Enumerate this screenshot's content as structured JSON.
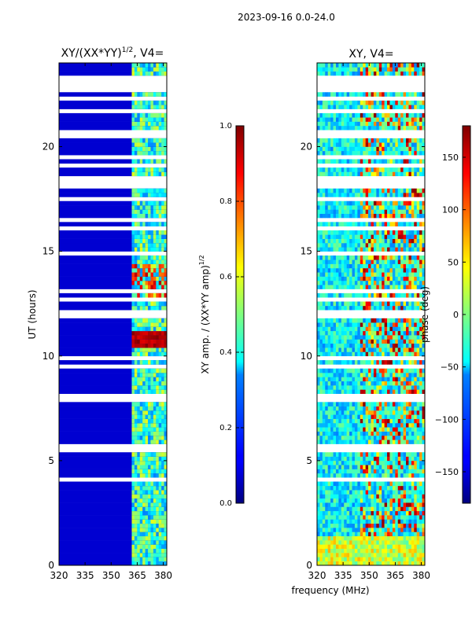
{
  "figure_title": "2023-09-16 0.0-24.0",
  "chart_data": [
    {
      "type": "heatmap",
      "title": "XY/(XX*YY)",
      "title_exponent": "1/2",
      "title_suffix": ", V4=",
      "xlabel": "",
      "ylabel": "UT (hours)",
      "xlim": [
        320,
        382
      ],
      "ylim": [
        0,
        24
      ],
      "xticks": [
        320,
        335,
        350,
        365,
        380
      ],
      "yticks": [
        0,
        5,
        10,
        15,
        20
      ],
      "colorbar": {
        "label_main": "XY amp. / (XX*YY amp)",
        "label_exponent": "1/2",
        "range": [
          0.0,
          1.0
        ],
        "ticks": [
          "0.0",
          "0.2",
          "0.4",
          "0.6",
          "0.8",
          "1.0"
        ],
        "colormap": "jet"
      }
    },
    {
      "type": "heatmap",
      "title": "XY, V4=",
      "xlabel": "frequency (MHz)",
      "ylabel": "",
      "xlim": [
        320,
        382
      ],
      "ylim": [
        0,
        24
      ],
      "xticks": [
        320,
        335,
        350,
        365,
        380
      ],
      "yticks": [
        0,
        5,
        10,
        15,
        20
      ],
      "colorbar": {
        "label_main": "phase (deg)",
        "range": [
          -180,
          180
        ],
        "ticks": [
          "150",
          "100",
          "50",
          "0",
          "−50",
          "−100",
          "−150"
        ],
        "tick_values": [
          150,
          100,
          50,
          0,
          -50,
          -100,
          -150
        ],
        "colormap": "jet"
      }
    }
  ],
  "colors": {
    "jet_low": "#00007f",
    "jet_high": "#7f0000",
    "gap": "#ffffff"
  }
}
